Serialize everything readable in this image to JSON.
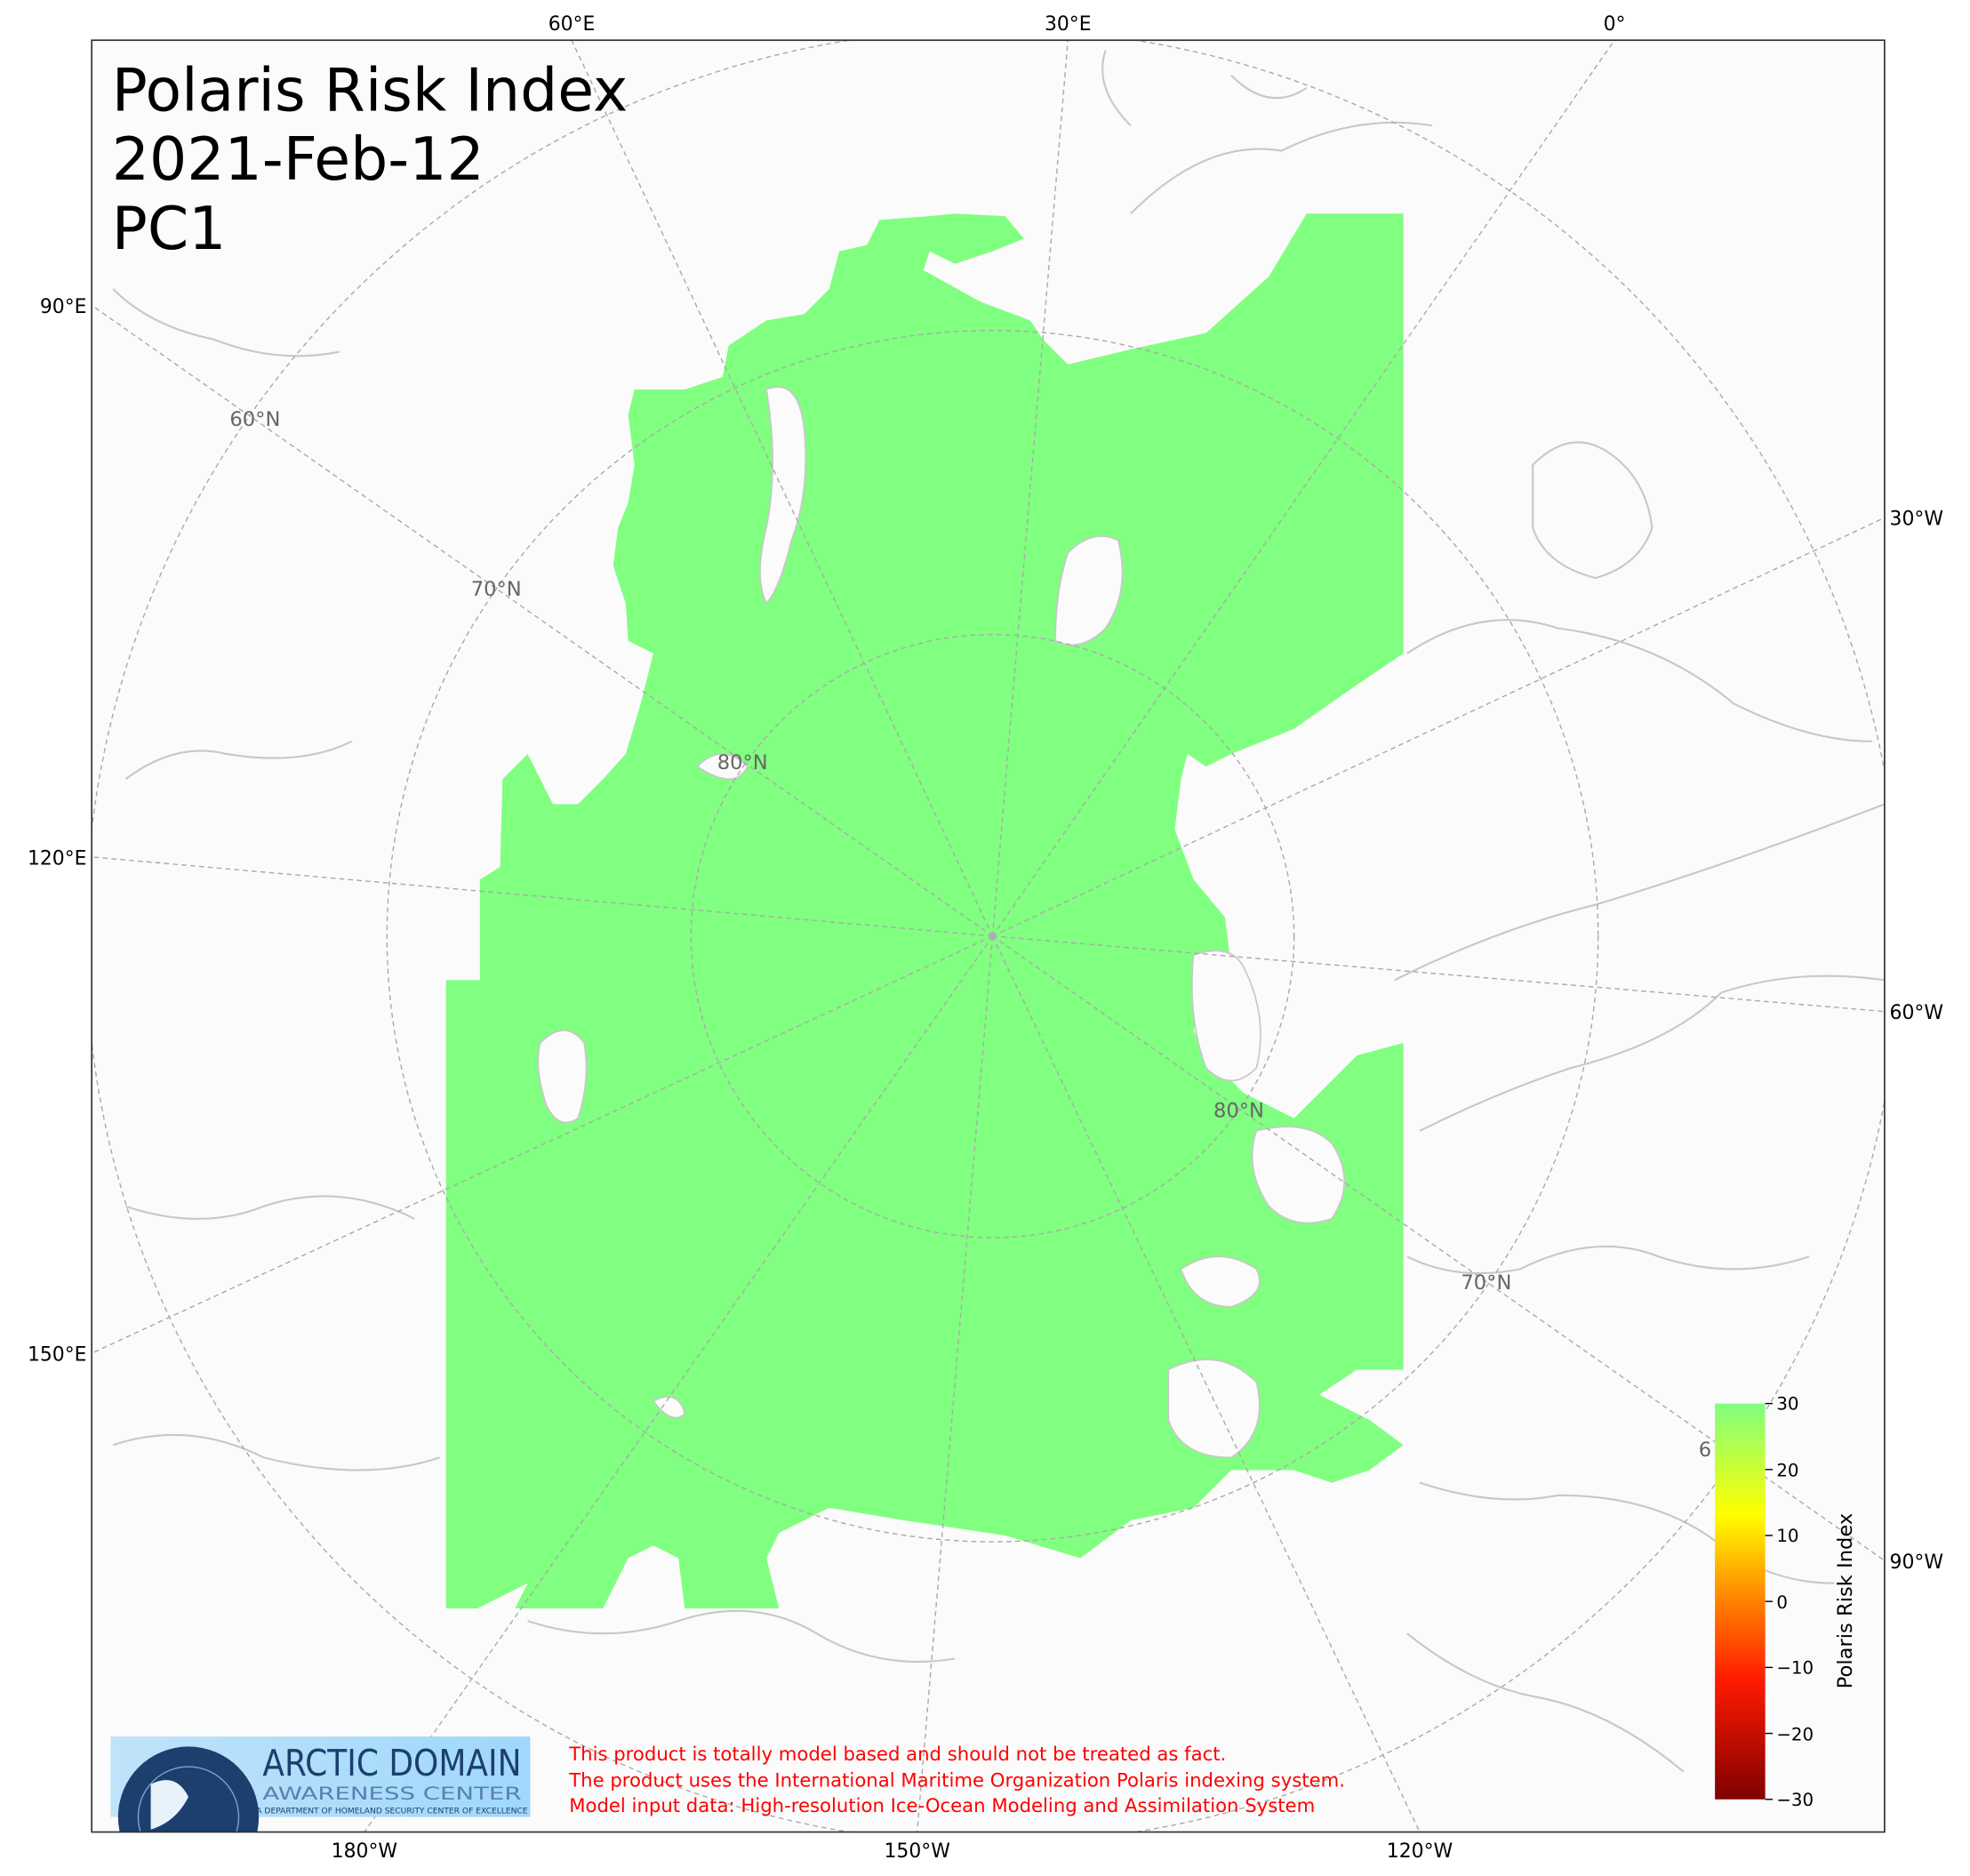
{
  "title": {
    "line1": "Polaris Risk Index",
    "line2": "2021-Feb-12",
    "line3": "PC1"
  },
  "map": {
    "projection": "north-polar-stereographic",
    "land_color": "#fbfbfb",
    "coastline_color": "#c8c8c8",
    "ice_color": "#80ff80",
    "gridline_color": "#aaaaaa",
    "lon_labels": {
      "top": [
        "60°E",
        "30°E",
        "0°"
      ],
      "left": [
        "90°E",
        "120°E",
        "150°E"
      ],
      "bottom": [
        "180°W",
        "150°W",
        "120°W"
      ],
      "right": [
        "30°W",
        "60°W",
        "90°W"
      ]
    },
    "lat_labels": [
      "60°N",
      "70°N",
      "80°N",
      "80°N",
      "70°N",
      "6"
    ]
  },
  "colorbar": {
    "label": "Polaris Risk Index",
    "ticks": [
      "30",
      "20",
      "10",
      "0",
      "−10",
      "−20",
      "−30"
    ],
    "range": [
      -30,
      30
    ],
    "colors": [
      "#800000",
      "#ff1a00",
      "#ff8000",
      "#ffff00",
      "#80ff80"
    ]
  },
  "logo": {
    "line1": "ARCTIC DOMAIN",
    "line2": "AWARENESS CENTER",
    "line3": "A DEPARTMENT OF HOMELAND SECURITY CENTER OF EXCELLENCE"
  },
  "disclaimer": [
    "This product is totally model based and should not be treated as fact.",
    "The product uses the International Maritime Organization Polaris indexing system.",
    "Model input data: High-resolution Ice-Ocean Modeling and Assimilation System"
  ]
}
